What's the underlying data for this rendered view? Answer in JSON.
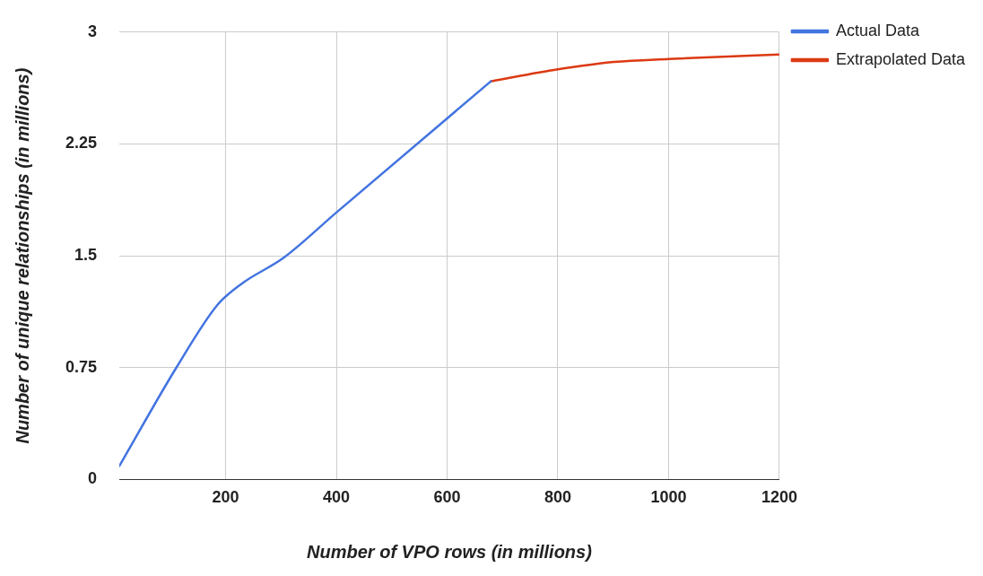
{
  "chart_data": {
    "type": "line",
    "xlabel": "Number of VPO rows (in millions)",
    "ylabel": "Number of unique relationships (in millions)",
    "xlim": [
      8,
      1200
    ],
    "xticks": [
      200,
      400,
      600,
      800,
      1000,
      1200
    ],
    "ylim": [
      0,
      3
    ],
    "yticks": [
      0,
      0.75,
      1.5,
      2.25,
      3
    ],
    "grid": true,
    "legend": "right",
    "marker": "none",
    "series": [
      {
        "name": "Actual Data",
        "color": "#4374e0",
        "x": [
          8,
          111,
          185,
          228,
          306,
          400,
          679
        ],
        "values": [
          0.09,
          0.75,
          1.17,
          1.31,
          1.49,
          1.79,
          2.67
        ]
      },
      {
        "name": "Extrapolated Data",
        "color": "#dc3912",
        "x": [
          679,
          800,
          902,
          1000,
          1200
        ],
        "values": [
          2.67,
          2.75,
          2.8,
          2.82,
          2.85
        ]
      }
    ]
  }
}
